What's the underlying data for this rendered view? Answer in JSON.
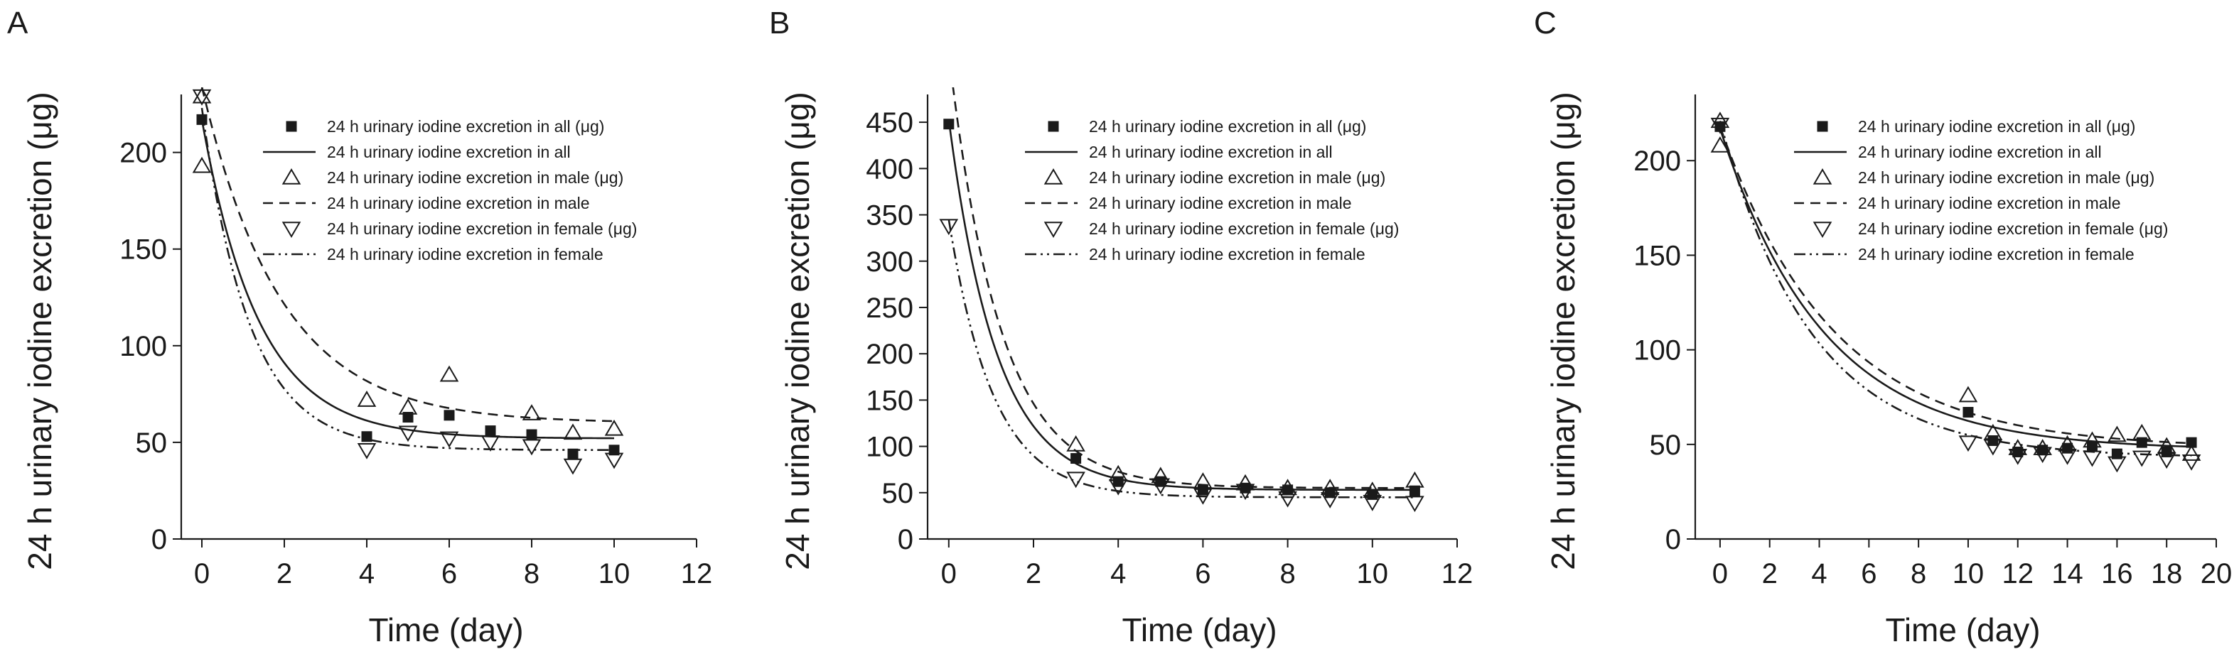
{
  "chart_data": [
    {
      "type": "scatter",
      "panel_label": "A",
      "xlabel": "Time (day)",
      "ylabel": "24 h urinary iodine excretion (μg)",
      "xlim": [
        -0.5,
        12
      ],
      "ylim": [
        0,
        230
      ],
      "xticks": [
        0,
        2,
        4,
        6,
        8,
        10,
        12
      ],
      "yticks": [
        0,
        50,
        100,
        150,
        200
      ],
      "grid": false,
      "legend_position": "top-right",
      "series": [
        {
          "name": "24 h urinary iodine excretion in all (μg)",
          "kind": "points",
          "marker": "square",
          "x": [
            0,
            4,
            5,
            6,
            7,
            8,
            9,
            10
          ],
          "y": [
            217,
            53,
            63,
            64,
            56,
            54,
            44,
            46
          ]
        },
        {
          "name": "24 h urinary iodine excretion in all",
          "kind": "curve",
          "dash": "solid",
          "fit": {
            "a": 165,
            "k": 0.72,
            "c": 52
          }
        },
        {
          "name": "24 h urinary iodine excretion in male (μg)",
          "kind": "points",
          "marker": "triangle-up",
          "x": [
            0,
            0,
            4,
            5,
            6,
            8,
            9,
            10
          ],
          "y": [
            229,
            193,
            72,
            68,
            85,
            65,
            55,
            57
          ]
        },
        {
          "name": "24 h urinary iodine excretion in male",
          "kind": "curve",
          "dash": "dashed",
          "fit": {
            "a": 174,
            "k": 0.52,
            "c": 60
          }
        },
        {
          "name": "24 h urinary iodine excretion in female (μg)",
          "kind": "points",
          "marker": "triangle-down",
          "x": [
            0,
            4,
            5,
            6,
            7,
            8,
            9,
            10
          ],
          "y": [
            229,
            46,
            55,
            52,
            50,
            48,
            38,
            41
          ]
        },
        {
          "name": "24 h urinary iodine excretion in female",
          "kind": "curve",
          "dash": "dashdot",
          "fit": {
            "a": 177,
            "k": 0.86,
            "c": 46
          }
        }
      ]
    },
    {
      "type": "scatter",
      "panel_label": "B",
      "xlabel": "Time (day)",
      "ylabel": "24 h urinary iodine excretion (μg)",
      "xlim": [
        -0.5,
        12
      ],
      "ylim": [
        0,
        480
      ],
      "xticks": [
        0,
        2,
        4,
        6,
        8,
        10,
        12
      ],
      "yticks": [
        0,
        50,
        100,
        150,
        200,
        250,
        300,
        350,
        400,
        450
      ],
      "grid": false,
      "legend_position": "top-right",
      "series": [
        {
          "name": "24 h urinary iodine excretion in all (μg)",
          "kind": "points",
          "marker": "square",
          "x": [
            0,
            3,
            4,
            5,
            6,
            7,
            8,
            9,
            10,
            11
          ],
          "y": [
            448,
            87,
            62,
            62,
            53,
            55,
            53,
            50,
            48,
            52
          ]
        },
        {
          "name": "24 h urinary iodine excretion in all",
          "kind": "curve",
          "dash": "solid",
          "fit": {
            "a": 400,
            "k": 0.88,
            "c": 53
          }
        },
        {
          "name": "24 h urinary iodine excretion in male (μg)",
          "kind": "points",
          "marker": "triangle-up",
          "x": [
            3,
            4,
            5,
            6,
            7,
            8,
            9,
            10,
            11
          ],
          "y": [
            102,
            70,
            68,
            62,
            60,
            55,
            55,
            52,
            63
          ]
        },
        {
          "name": "24 h urinary iodine excretion in male",
          "kind": "curve",
          "dash": "dashed",
          "fit": {
            "a": 470,
            "k": 0.82,
            "c": 55
          }
        },
        {
          "name": "24 h urinary iodine excretion in female (μg)",
          "kind": "points",
          "marker": "triangle-down",
          "x": [
            0,
            3,
            4,
            5,
            6,
            7,
            8,
            9,
            10,
            11
          ],
          "y": [
            338,
            65,
            57,
            58,
            47,
            52,
            44,
            43,
            40,
            39
          ]
        },
        {
          "name": "24 h urinary iodine excretion in female",
          "kind": "curve",
          "dash": "dashdot",
          "fit": {
            "a": 300,
            "k": 0.95,
            "c": 45
          }
        }
      ]
    },
    {
      "type": "scatter",
      "panel_label": "C",
      "xlabel": "Time (day)",
      "ylabel": "24 h urinary iodine excretion (μg)",
      "xlim": [
        -1,
        20
      ],
      "ylim": [
        0,
        235
      ],
      "xticks": [
        0,
        2,
        4,
        6,
        8,
        10,
        12,
        14,
        16,
        18,
        20
      ],
      "yticks": [
        0,
        50,
        100,
        150,
        200
      ],
      "grid": false,
      "legend_position": "top-right",
      "series": [
        {
          "name": "24 h urinary iodine excretion in all (μg)",
          "kind": "points",
          "marker": "square",
          "x": [
            0,
            10,
            11,
            12,
            13,
            14,
            15,
            16,
            17,
            18,
            19
          ],
          "y": [
            218,
            67,
            52,
            46,
            47,
            48,
            49,
            45,
            51,
            46,
            51
          ]
        },
        {
          "name": "24 h urinary iodine excretion in all",
          "kind": "curve",
          "dash": "solid",
          "fit": {
            "a": 170,
            "k": 0.24,
            "c": 47
          }
        },
        {
          "name": "24 h urinary iodine excretion in male (μg)",
          "kind": "points",
          "marker": "triangle-up",
          "x": [
            0,
            0,
            10,
            11,
            12,
            13,
            14,
            15,
            16,
            17,
            18,
            19
          ],
          "y": [
            221,
            208,
            76,
            56,
            48,
            48,
            50,
            52,
            55,
            56,
            49,
            45
          ]
        },
        {
          "name": "24 h urinary iodine excretion in male",
          "kind": "curve",
          "dash": "dashed",
          "fit": {
            "a": 170,
            "k": 0.22,
            "c": 48
          }
        },
        {
          "name": "24 h urinary iodine excretion in female (μg)",
          "kind": "points",
          "marker": "triangle-down",
          "x": [
            0,
            10,
            11,
            12,
            13,
            14,
            15,
            16,
            17,
            18,
            19
          ],
          "y": [
            219,
            51,
            49,
            44,
            45,
            44,
            43,
            40,
            43,
            42,
            41
          ]
        },
        {
          "name": "24 h urinary iodine excretion in female",
          "kind": "curve",
          "dash": "dashdot",
          "fit": {
            "a": 178,
            "k": 0.27,
            "c": 43
          }
        }
      ]
    }
  ]
}
